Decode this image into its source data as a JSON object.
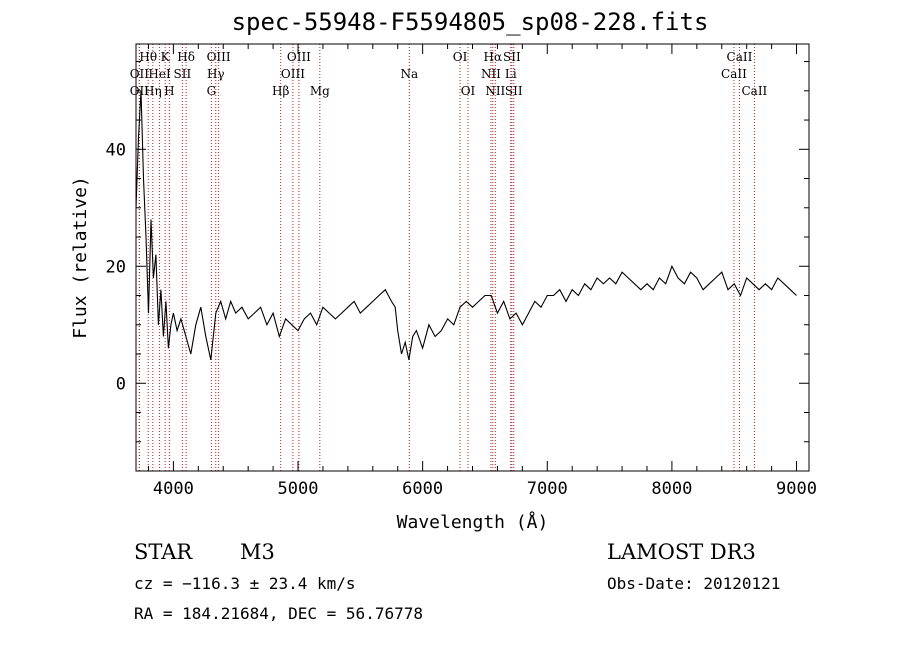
{
  "chart_data": {
    "type": "line",
    "title": "spec-55948-F5594805_sp08-228.fits",
    "xlabel": "Wavelength (Å)",
    "ylabel": "Flux (relative)",
    "xlim": [
      3700,
      9100
    ],
    "ylim": [
      -15,
      58
    ],
    "xticks": [
      4000,
      5000,
      6000,
      7000,
      8000,
      9000
    ],
    "yticks": [
      0,
      20,
      40
    ],
    "series": [
      {
        "name": "flux",
        "x": [
          3700,
          3720,
          3740,
          3760,
          3780,
          3800,
          3820,
          3840,
          3860,
          3880,
          3900,
          3920,
          3940,
          3960,
          3980,
          4000,
          4030,
          4060,
          4100,
          4140,
          4180,
          4220,
          4260,
          4300,
          4340,
          4380,
          4420,
          4460,
          4500,
          4550,
          4600,
          4650,
          4700,
          4750,
          4800,
          4850,
          4900,
          4950,
          5000,
          5050,
          5100,
          5150,
          5200,
          5250,
          5300,
          5350,
          5400,
          5450,
          5500,
          5550,
          5600,
          5650,
          5700,
          5750,
          5780,
          5800,
          5830,
          5860,
          5890,
          5920,
          5950,
          6000,
          6050,
          6100,
          6150,
          6200,
          6250,
          6300,
          6350,
          6400,
          6450,
          6500,
          6550,
          6600,
          6650,
          6700,
          6750,
          6800,
          6850,
          6900,
          6950,
          7000,
          7050,
          7100,
          7150,
          7200,
          7250,
          7300,
          7350,
          7400,
          7450,
          7500,
          7550,
          7600,
          7650,
          7700,
          7750,
          7800,
          7850,
          7900,
          7950,
          8000,
          8050,
          8100,
          8150,
          8200,
          8250,
          8300,
          8350,
          8400,
          8450,
          8500,
          8550,
          8600,
          8650,
          8700,
          8750,
          8800,
          8850,
          8900,
          8950,
          9000
        ],
        "y": [
          30,
          42,
          50,
          35,
          25,
          12,
          28,
          18,
          22,
          10,
          16,
          8,
          14,
          6,
          10,
          12,
          9,
          11,
          8,
          5,
          10,
          13,
          8,
          4,
          12,
          14,
          11,
          14,
          12,
          13,
          11,
          12,
          13,
          10,
          12,
          8,
          11,
          10,
          9,
          11,
          12,
          10,
          13,
          12,
          11,
          12,
          13,
          14,
          12,
          13,
          14,
          15,
          16,
          14,
          13,
          9,
          5,
          7,
          4,
          8,
          9,
          6,
          10,
          8,
          9,
          11,
          10,
          13,
          14,
          13,
          14,
          15,
          15,
          12,
          14,
          11,
          12,
          10,
          12,
          14,
          13,
          15,
          15,
          16,
          14,
          16,
          15,
          17,
          16,
          18,
          17,
          18,
          17,
          19,
          18,
          17,
          16,
          17,
          16,
          18,
          17,
          20,
          18,
          17,
          19,
          18,
          16,
          17,
          18,
          19,
          16,
          17,
          15,
          18,
          17,
          16,
          17,
          16,
          18,
          17,
          16,
          15
        ]
      }
    ],
    "lines": [
      {
        "name": "OII",
        "wave": 3727,
        "row": 2
      },
      {
        "name": "OII",
        "wave": 3727,
        "row": 3
      },
      {
        "name": "Hθ",
        "wave": 3798,
        "row": 1
      },
      {
        "name": "Hη",
        "wave": 3835,
        "row": 3
      },
      {
        "name": "HeI",
        "wave": 3889,
        "row": 2
      },
      {
        "name": "K",
        "wave": 3934,
        "row": 1
      },
      {
        "name": "H",
        "wave": 3968,
        "row": 3
      },
      {
        "name": "SII",
        "wave": 4072,
        "row": 2
      },
      {
        "name": "Hδ",
        "wave": 4102,
        "row": 1
      },
      {
        "name": "G",
        "wave": 4305,
        "row": 3
      },
      {
        "name": "Hγ",
        "wave": 4340,
        "row": 2
      },
      {
        "name": "OIII",
        "wave": 4363,
        "row": 1
      },
      {
        "name": "Hβ",
        "wave": 4861,
        "row": 3
      },
      {
        "name": "OIII",
        "wave": 4959,
        "row": 2
      },
      {
        "name": "OIII",
        "wave": 5007,
        "row": 1
      },
      {
        "name": "Mg",
        "wave": 5175,
        "row": 3
      },
      {
        "name": "Na",
        "wave": 5893,
        "row": 2
      },
      {
        "name": "OI",
        "wave": 6300,
        "row": 1
      },
      {
        "name": "OI",
        "wave": 6364,
        "row": 3
      },
      {
        "name": "NII",
        "wave": 6548,
        "row": 2
      },
      {
        "name": "Hα",
        "wave": 6563,
        "row": 1
      },
      {
        "name": "NII",
        "wave": 6583,
        "row": 3
      },
      {
        "name": "Li",
        "wave": 6707,
        "row": 2
      },
      {
        "name": "SII",
        "wave": 6716,
        "row": 1
      },
      {
        "name": "SII",
        "wave": 6731,
        "row": 3
      },
      {
        "name": "CaII",
        "wave": 8498,
        "row": 2
      },
      {
        "name": "CaII",
        "wave": 8542,
        "row": 1
      },
      {
        "name": "CaII",
        "wave": 8662,
        "row": 3
      }
    ]
  },
  "info": {
    "object_class": "STAR",
    "subclass": "M3",
    "survey": "LAMOST DR3",
    "cz": "cz = −116.3 ± 23.4 km/s",
    "obs_date": "Obs-Date: 20120121",
    "radec": "RA = 184.21684, DEC =  56.76778"
  },
  "colors": {
    "line_marker": "#b22222",
    "spectrum": "#000000"
  }
}
